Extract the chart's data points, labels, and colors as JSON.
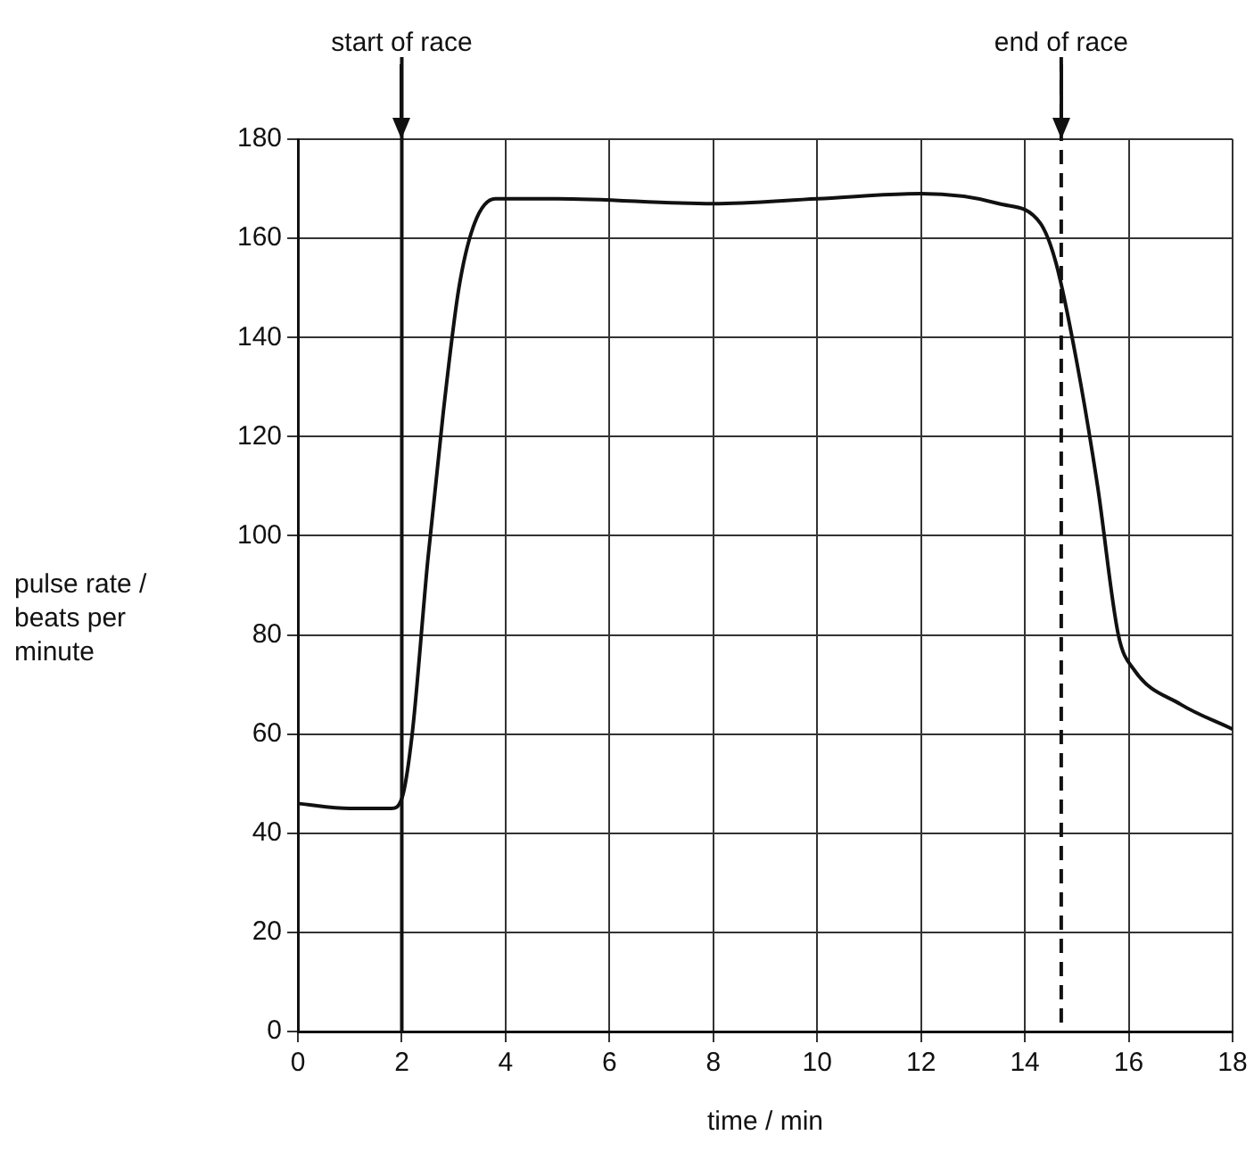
{
  "chart_data": {
    "type": "line",
    "xlabel": "time / min",
    "ylabel": "pulse rate / beats per minute",
    "x": [
      0,
      1,
      1.8,
      2,
      2.2,
      2.5,
      2.8,
      3.1,
      3.4,
      3.8,
      5,
      8,
      10,
      12,
      13.5,
      14.3,
      14.6,
      15,
      15.4,
      15.8,
      16.1,
      17,
      18
    ],
    "series": [
      {
        "color": "#111111",
        "values": [
          46,
          45,
          45,
          47,
          60,
          95,
          125,
          150,
          163,
          168,
          168,
          167,
          168,
          169,
          167,
          163,
          155,
          135,
          110,
          80,
          73,
          66,
          61
        ]
      }
    ],
    "xlim": [
      0,
      18
    ],
    "xticks": [
      0,
      2,
      4,
      6,
      8,
      10,
      12,
      14,
      16,
      18
    ],
    "ylim": [
      0,
      180
    ],
    "yticks": [
      0,
      20,
      40,
      60,
      80,
      100,
      120,
      140,
      160,
      180
    ],
    "grid": true,
    "legend": false,
    "marker": "none",
    "line_style": "solid",
    "ref_lines": [
      {
        "axis": "x",
        "value": 2,
        "label": "start of race"
      },
      {
        "axis": "x",
        "value": 14.7,
        "label": "end of race",
        "line_style": "dashed"
      }
    ]
  }
}
